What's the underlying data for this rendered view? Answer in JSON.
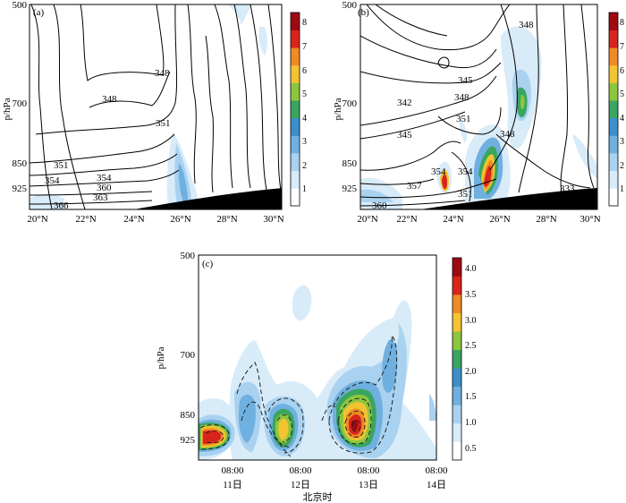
{
  "chart_data": [
    {
      "type": "contour",
      "panel_label": "(a)",
      "ylabel": "p/hPa",
      "y_ticks": [
        "500",
        "700",
        "850",
        "925"
      ],
      "x_ticks": [
        "20°N",
        "22°N",
        "24°N",
        "26°N",
        "28°N",
        "30°N"
      ],
      "contour_labels": [
        "348",
        "348",
        "351",
        "351",
        "354",
        "354",
        "360",
        "363",
        "366"
      ],
      "colorbar_ticks": [
        "1",
        "2",
        "3",
        "4",
        "5",
        "6",
        "7",
        "8"
      ]
    },
    {
      "type": "contour",
      "panel_label": "(b)",
      "ylabel": "p/hPa",
      "y_ticks": [
        "500",
        "700",
        "850",
        "925"
      ],
      "x_ticks": [
        "20°N",
        "22°N",
        "24°N",
        "26°N",
        "28°N",
        "30°N"
      ],
      "contour_labels": [
        "348",
        "345",
        "342",
        "348",
        "351",
        "345",
        "348",
        "354",
        "354",
        "357",
        "351",
        "333",
        "360"
      ],
      "colorbar_ticks": [
        "1",
        "2",
        "3",
        "4",
        "5",
        "6",
        "7",
        "8"
      ]
    },
    {
      "type": "heatmap",
      "panel_label": "(c)",
      "ylabel": "p/hPa",
      "xlabel": "北京时",
      "y_ticks": [
        "500",
        "700",
        "850",
        "925"
      ],
      "x_ticks": [
        "08:00",
        "08:00",
        "08:00",
        "08:00"
      ],
      "x_ticks_sub": [
        "11日",
        "12日",
        "13日",
        "14日"
      ],
      "colorbar_ticks": [
        "0.5",
        "1.0",
        "1.5",
        "2.0",
        "2.5",
        "3.0",
        "3.5",
        "4.0"
      ]
    }
  ],
  "colors": {
    "scale": [
      "#ffffff",
      "#d8ebf8",
      "#a9d2f0",
      "#6fb0e0",
      "#3c8fcb",
      "#3aa560",
      "#8cc63f",
      "#f2c431",
      "#f08a24",
      "#d9241c",
      "#9e0a12"
    ]
  }
}
